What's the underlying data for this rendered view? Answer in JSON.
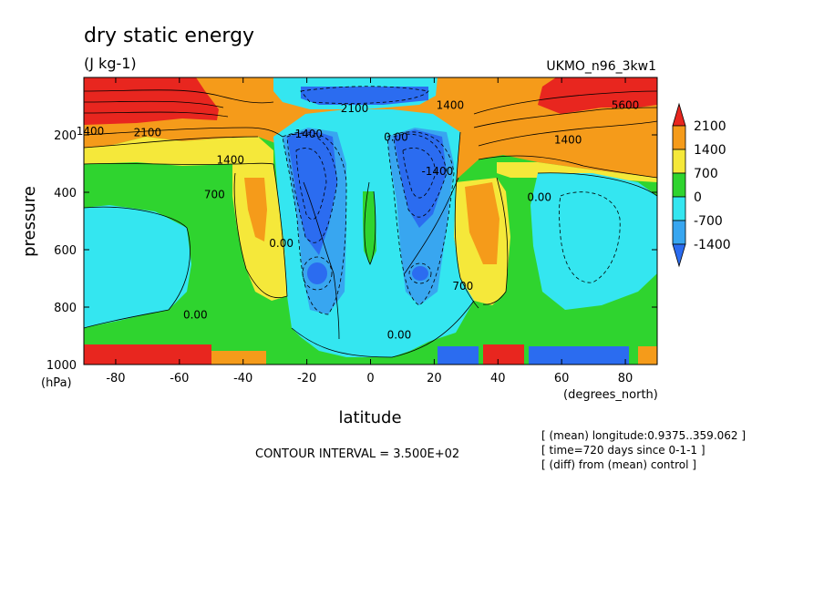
{
  "chart_data": {
    "type": "contour",
    "title": "dry static energy",
    "units": "(J kg-1)",
    "dataset": "UKMO_n96_3kw1",
    "xlabel": "latitude",
    "xunit": "(degrees_north)",
    "ylabel": "pressure",
    "yunit": "(hPa)",
    "xlim": [
      -90,
      90
    ],
    "ylim": [
      1000,
      0
    ],
    "xticks": [
      -80,
      -60,
      -40,
      -20,
      0,
      20,
      40,
      60,
      80
    ],
    "yticks": [
      200,
      400,
      600,
      800,
      1000
    ],
    "contour_interval_text": "CONTOUR INTERVAL = 3.500E+02",
    "notes": [
      "[ (mean) longitude:0.9375..359.062 ]",
      "[ time=720 days since 0-1-1 ]",
      "[ (diff) from (mean) control ]"
    ],
    "colorbar": {
      "labels": [
        "2100",
        "1400",
        "700",
        "0",
        "-700",
        "-1400"
      ],
      "colors": [
        "#e8261f",
        "#f59b1a",
        "#f5e83a",
        "#2fd42f",
        "#34e6f0",
        "#38a6f0",
        "#2b6cf0"
      ]
    },
    "contour_labels": [
      {
        "text": "1400",
        "lat": -88,
        "p": 200
      },
      {
        "text": "2100",
        "lat": -70,
        "p": 205
      },
      {
        "text": "1400",
        "lat": -44,
        "p": 300
      },
      {
        "text": "700",
        "lat": -49,
        "p": 420
      },
      {
        "text": "0.00",
        "lat": -55,
        "p": 840
      },
      {
        "text": "0.00",
        "lat": -28,
        "p": 590
      },
      {
        "text": "-1400",
        "lat": -20,
        "p": 210
      },
      {
        "text": "0.00",
        "lat": 8,
        "p": 220
      },
      {
        "text": "2100",
        "lat": -5,
        "p": 120
      },
      {
        "text": "-1400",
        "lat": 21,
        "p": 340
      },
      {
        "text": "1400",
        "lat": 25,
        "p": 110
      },
      {
        "text": "700",
        "lat": 29,
        "p": 740
      },
      {
        "text": "0.00",
        "lat": 9,
        "p": 910
      },
      {
        "text": "0.00",
        "lat": 53,
        "p": 430
      },
      {
        "text": "1400",
        "lat": 62,
        "p": 230
      },
      {
        "text": "5600",
        "lat": 80,
        "p": 110
      }
    ]
  }
}
